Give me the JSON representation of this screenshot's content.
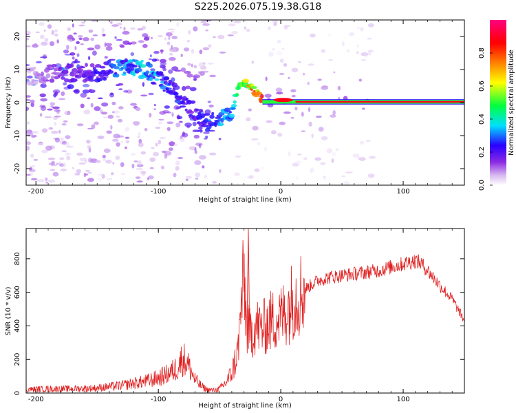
{
  "figure_title": "S225.2026.075.19.38.G18",
  "chart_data": [
    {
      "type": "heatmap",
      "xlabel": "Height of straight line (km)",
      "ylabel": "Frequency (Hz)",
      "xlim": [
        -208,
        150
      ],
      "ylim": [
        -25,
        25
      ],
      "xticks": [
        -200,
        -100,
        0,
        100
      ],
      "yticks": [
        -20,
        -10,
        0,
        10,
        20
      ],
      "colorbar": {
        "label": "Normalized spectral amplitude",
        "range": [
          0,
          1
        ],
        "ticks": [
          "0.0",
          "0.2",
          "0.4",
          "0.6",
          "0.8"
        ],
        "colors": [
          "#ffffff",
          "#d8b8f0",
          "#8a2be2",
          "#2a00ff",
          "#00e0ff",
          "#00ff40",
          "#ffff00",
          "#ff8000",
          "#ff0000",
          "#ff0080"
        ]
      },
      "ridge": {
        "x": [
          -208,
          -180,
          -150,
          -130,
          -110,
          -100,
          -90,
          -80,
          -70,
          -60,
          -50,
          -40,
          -35,
          -30,
          -25,
          -20,
          -15,
          -10,
          -5,
          0,
          10,
          20,
          150
        ],
        "freq": [
          8,
          9,
          9,
          11,
          10,
          7,
          4,
          1,
          -3,
          -6,
          -5,
          -3,
          4,
          6,
          5,
          3,
          1,
          0.5,
          0.5,
          0.5,
          0.2,
          0.1,
          0.1
        ],
        "amplitude": [
          0.05,
          0.15,
          0.2,
          0.3,
          0.35,
          0.3,
          0.25,
          0.2,
          0.2,
          0.25,
          0.3,
          0.3,
          0.45,
          0.55,
          0.65,
          0.75,
          0.85,
          0.9,
          0.95,
          0.95,
          0.9,
          0.85,
          0.85
        ]
      }
    },
    {
      "type": "line",
      "xlabel": "Height of straight line (km)",
      "ylabel": "SNR (10 * v/v)",
      "xlim": [
        -208,
        150
      ],
      "ylim": [
        0,
        980
      ],
      "xticks": [
        -200,
        -100,
        0,
        100
      ],
      "yticks": [
        0,
        200,
        400,
        600,
        800
      ],
      "color": "#e02020",
      "series": [
        {
          "name": "SNR",
          "x": [
            -208,
            -190,
            -170,
            -150,
            -130,
            -110,
            -100,
            -90,
            -85,
            -80,
            -75,
            -70,
            -65,
            -60,
            -55,
            -50,
            -45,
            -40,
            -35,
            -32,
            -30,
            -28,
            -25,
            -20,
            -15,
            -10,
            -5,
            0,
            5,
            10,
            20,
            30,
            40,
            50,
            60,
            70,
            80,
            90,
            100,
            105,
            110,
            115,
            120,
            130,
            140,
            150
          ],
          "y": [
            20,
            25,
            25,
            30,
            45,
            70,
            90,
            120,
            150,
            210,
            160,
            80,
            40,
            20,
            15,
            25,
            60,
            120,
            250,
            550,
            700,
            400,
            350,
            400,
            380,
            420,
            440,
            450,
            500,
            560,
            620,
            670,
            690,
            700,
            710,
            720,
            730,
            750,
            770,
            780,
            790,
            770,
            730,
            640,
            560,
            430
          ]
        }
      ]
    }
  ]
}
